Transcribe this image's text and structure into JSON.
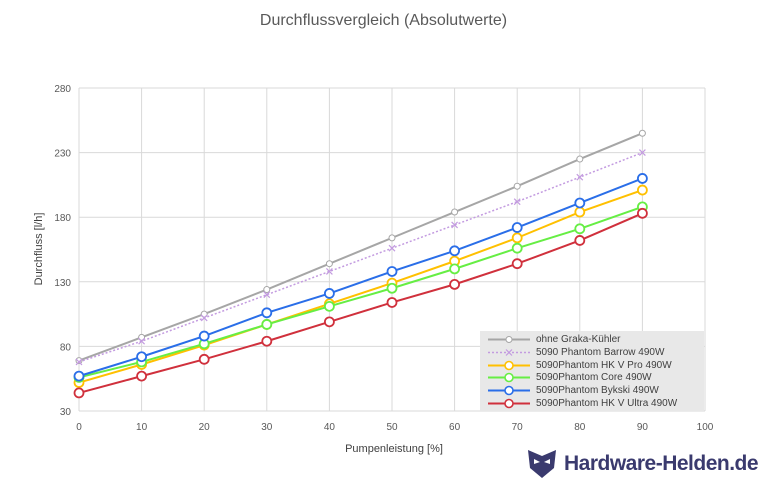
{
  "chart_data": {
    "type": "line",
    "title": "Durchflussvergleich (Absolutwerte)",
    "xlabel": "Pumpenleistung [%]",
    "ylabel": "Durchfluss [l/h]",
    "x": [
      0,
      10,
      20,
      30,
      40,
      50,
      60,
      70,
      80,
      90
    ],
    "xlim": [
      0,
      100
    ],
    "xticks": [
      0,
      10,
      20,
      30,
      40,
      50,
      60,
      70,
      80,
      90,
      100
    ],
    "ylim": [
      30,
      280
    ],
    "yticks": [
      30,
      80,
      130,
      180,
      230,
      280
    ],
    "grid": true,
    "legend_position": "bottom-right",
    "series": [
      {
        "name": "ohne Graka-Kühler",
        "color": "#a6a6a6",
        "style": "solid",
        "values": [
          69,
          87,
          105,
          124,
          144,
          164,
          184,
          204,
          225,
          245
        ]
      },
      {
        "name": "5090 Phantom Barrow 490W",
        "color": "#c39be0",
        "style": "dotted",
        "values": [
          68,
          84,
          102,
          120,
          138,
          156,
          174,
          192,
          211,
          230
        ]
      },
      {
        "name": "5090Phantom HK V Pro 490W",
        "color": "#ffc000",
        "style": "solid",
        "values": [
          52,
          66,
          81,
          97,
          113,
          129,
          146,
          164,
          184,
          201
        ]
      },
      {
        "name": "5090Phantom Core 490W",
        "color": "#66ee44",
        "style": "solid",
        "values": [
          56,
          68,
          82,
          97,
          111,
          125,
          140,
          156,
          171,
          188
        ]
      },
      {
        "name": "5090Phantom Bykski 490W",
        "color": "#2a6ee8",
        "style": "solid",
        "values": [
          57,
          72,
          88,
          106,
          121,
          138,
          154,
          172,
          191,
          210
        ]
      },
      {
        "name": "5090Phantom HK V Ultra 490W",
        "color": "#d0303c",
        "style": "solid",
        "values": [
          44,
          57,
          70,
          84,
          99,
          114,
          128,
          144,
          162,
          183
        ]
      }
    ]
  },
  "watermark": {
    "text": "Hardware-Helden.de",
    "logo_icon": "mask-logo-icon"
  }
}
